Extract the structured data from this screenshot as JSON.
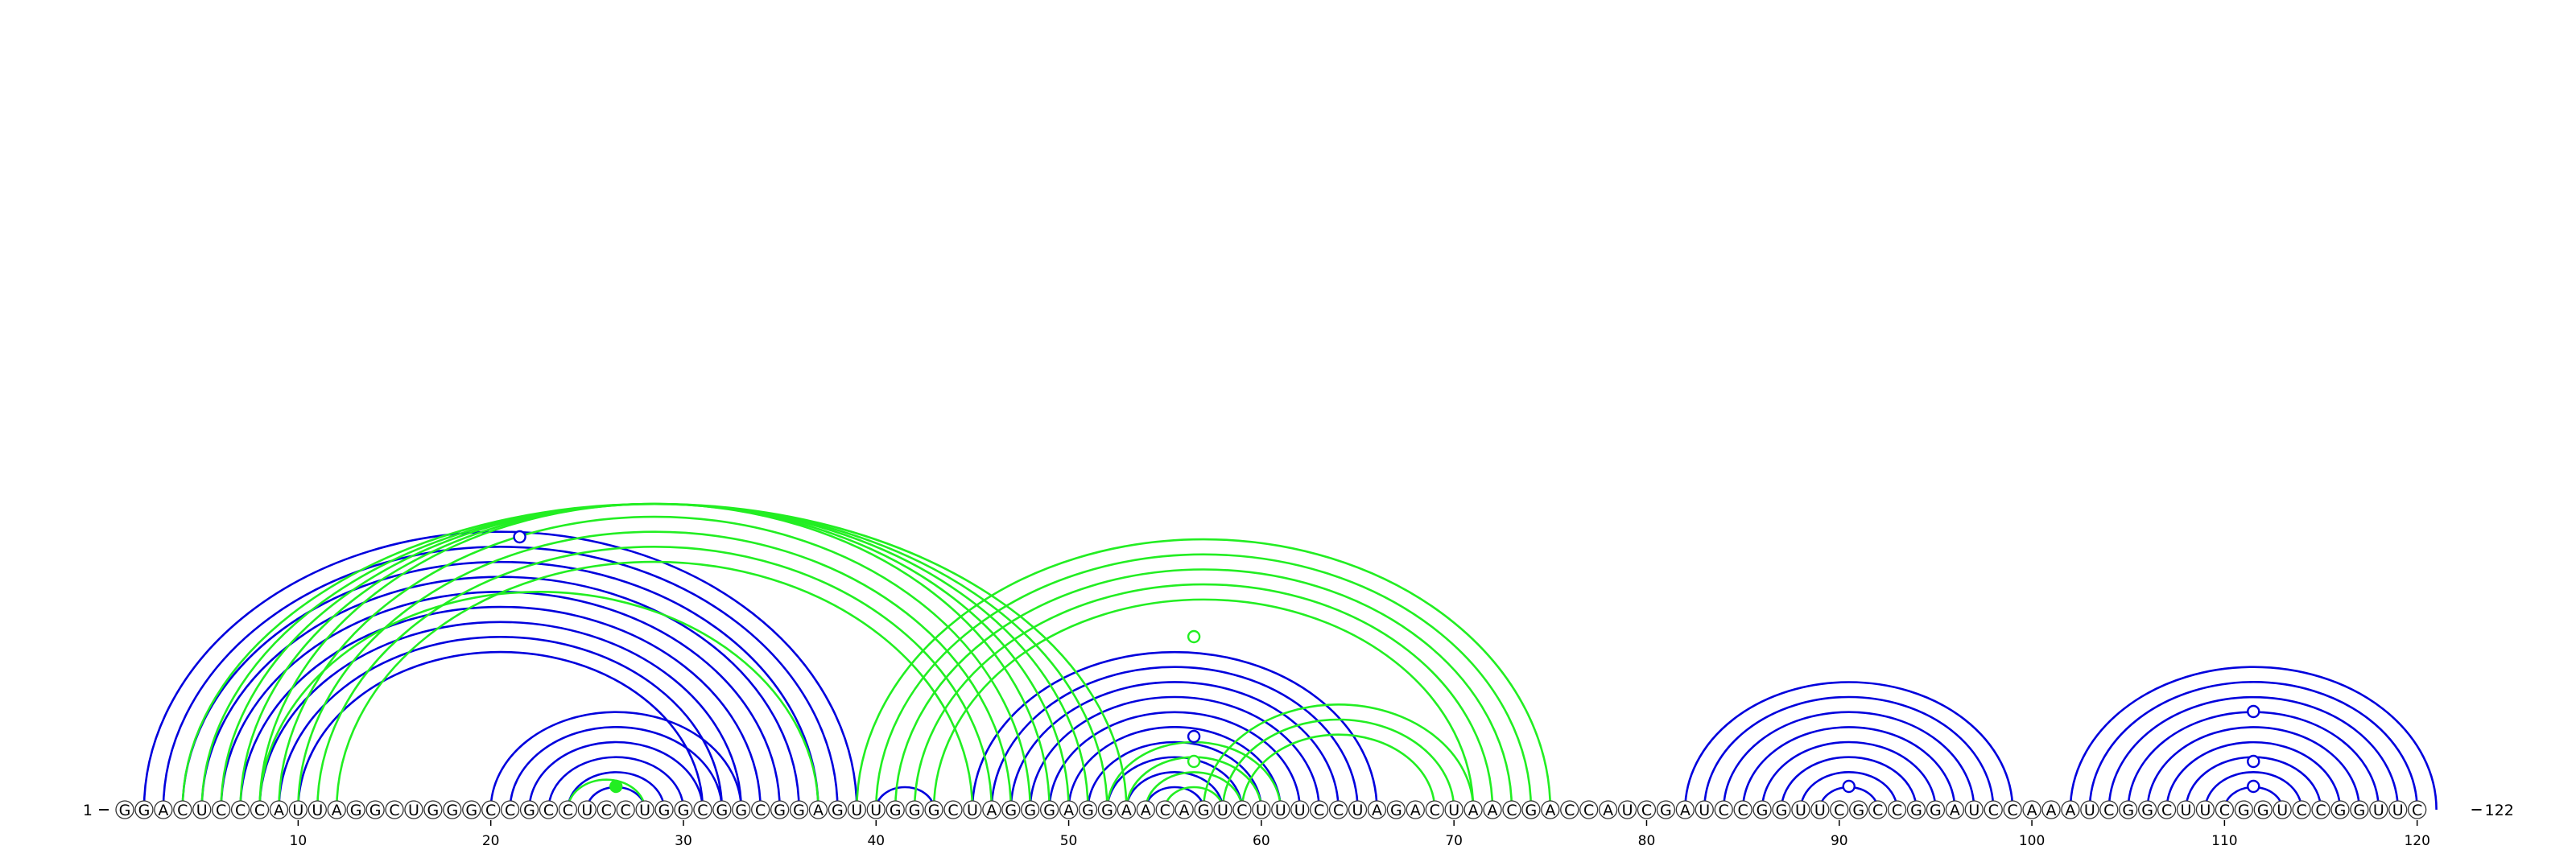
{
  "sequence": "GGACUCCCAUUAGGCUGGGCCGCCUCCUGGCGGCGGAGUUGGGCUAGGGAGGAACAGUCUUUCCUAGACUAACGACCAUCGAUCCGGUUCGCCGGAUCCAAAUCGGCUUCGGUCCGGUUC",
  "length": 122,
  "start_label": "1",
  "end_label": "122",
  "ticks": [
    "10",
    "20",
    "30",
    "40",
    "50",
    "60",
    "70",
    "80",
    "90",
    "100",
    "110",
    "120"
  ],
  "colors": {
    "blue": "#0000dd",
    "green": "#22ee22",
    "nucleotide_fill": "#ffffff",
    "nucleotide_stroke": "#333333"
  },
  "arcs": {
    "blue": [
      [
        2,
        39
      ],
      [
        3,
        38
      ],
      [
        4,
        37
      ],
      [
        5,
        36
      ],
      [
        6,
        35
      ],
      [
        7,
        34
      ],
      [
        8,
        33
      ],
      [
        9,
        32
      ],
      [
        10,
        31
      ],
      [
        20,
        33
      ],
      [
        21,
        32
      ],
      [
        22,
        31
      ],
      [
        23,
        30
      ],
      [
        24,
        29
      ],
      [
        25,
        28
      ],
      [
        40,
        43
      ],
      [
        45,
        66
      ],
      [
        46,
        65
      ],
      [
        47,
        64
      ],
      [
        48,
        63
      ],
      [
        49,
        62
      ],
      [
        50,
        61
      ],
      [
        51,
        60
      ],
      [
        52,
        59
      ],
      [
        53,
        58
      ],
      [
        54,
        57
      ],
      [
        82,
        99
      ],
      [
        83,
        98
      ],
      [
        84,
        97
      ],
      [
        85,
        96
      ],
      [
        86,
        95
      ],
      [
        87,
        94
      ],
      [
        88,
        93
      ],
      [
        89,
        92
      ],
      [
        102,
        121
      ],
      [
        103,
        120
      ],
      [
        104,
        119
      ],
      [
        105,
        118
      ],
      [
        106,
        117
      ],
      [
        107,
        116
      ],
      [
        108,
        115
      ],
      [
        109,
        114
      ],
      [
        110,
        113
      ]
    ],
    "green": [
      [
        4,
        53
      ],
      [
        5,
        52
      ],
      [
        6,
        51
      ],
      [
        7,
        50
      ],
      [
        8,
        49
      ],
      [
        9,
        48
      ],
      [
        10,
        47
      ],
      [
        11,
        46
      ],
      [
        12,
        45
      ],
      [
        8,
        37
      ],
      [
        24,
        28
      ],
      [
        39,
        75
      ],
      [
        40,
        74
      ],
      [
        41,
        73
      ],
      [
        42,
        72
      ],
      [
        43,
        71
      ],
      [
        52,
        61
      ],
      [
        53,
        60
      ],
      [
        54,
        59
      ],
      [
        55,
        58
      ],
      [
        57,
        71
      ],
      [
        58,
        70
      ],
      [
        59,
        69
      ]
    ]
  },
  "markers": [
    {
      "pos": 21.5,
      "level": 11,
      "color": "blue",
      "filled": false
    },
    {
      "pos": 56.5,
      "level": 7,
      "color": "green",
      "filled": false
    },
    {
      "pos": 56.5,
      "level": 3,
      "color": "blue",
      "filled": false
    },
    {
      "pos": 56.5,
      "level": 2,
      "color": "green",
      "filled": false
    },
    {
      "pos": 26.5,
      "level": 1,
      "color": "green",
      "filled": true
    },
    {
      "pos": 90.5,
      "level": 1,
      "color": "blue",
      "filled": false
    },
    {
      "pos": 111.5,
      "level": 4,
      "color": "blue",
      "filled": false
    },
    {
      "pos": 111.5,
      "level": 2,
      "color": "blue",
      "filled": false
    },
    {
      "pos": 111.5,
      "level": 1,
      "color": "blue",
      "filled": false
    }
  ]
}
